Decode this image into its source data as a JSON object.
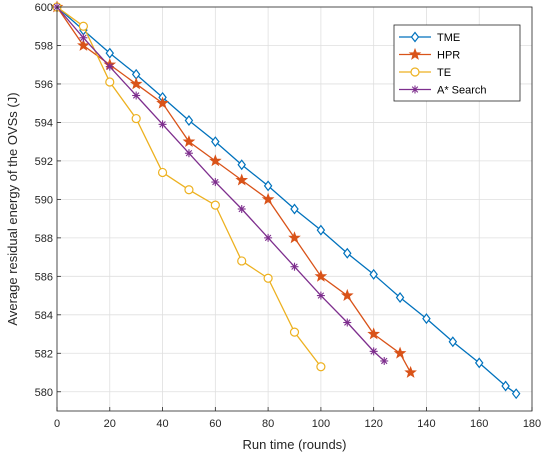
{
  "chart_data": {
    "type": "line",
    "title": "",
    "xlabel": "Run time (rounds)",
    "ylabel": "Average residual energy of the OVSs (J)",
    "xlim": [
      0,
      180
    ],
    "ylim": [
      579,
      600
    ],
    "xticks": [
      0,
      20,
      40,
      60,
      80,
      100,
      120,
      140,
      160,
      180
    ],
    "yticks": [
      580,
      582,
      584,
      586,
      588,
      590,
      592,
      594,
      596,
      598,
      600
    ],
    "grid": true,
    "legend_position": "top-right",
    "series": [
      {
        "name": "TME",
        "color": "#0072BD",
        "marker": "diamond",
        "x": [
          0,
          10,
          20,
          30,
          40,
          50,
          60,
          70,
          80,
          90,
          100,
          110,
          120,
          130,
          140,
          150,
          160,
          170,
          174
        ],
        "y": [
          600,
          598.8,
          597.6,
          596.5,
          595.3,
          594.1,
          593.0,
          591.8,
          590.7,
          589.5,
          588.4,
          587.2,
          586.1,
          584.9,
          583.8,
          582.6,
          581.5,
          580.3,
          579.9
        ]
      },
      {
        "name": "HPR",
        "color": "#D95319",
        "marker": "star",
        "x": [
          0,
          10,
          20,
          30,
          40,
          50,
          60,
          70,
          80,
          90,
          100,
          110,
          120,
          130,
          134
        ],
        "y": [
          600,
          598.0,
          597.0,
          596.0,
          595.0,
          593.0,
          592.0,
          591.0,
          590.0,
          588.0,
          586.0,
          585.0,
          583.0,
          582.0,
          581.0
        ]
      },
      {
        "name": "TE",
        "color": "#EDB120",
        "marker": "circle",
        "x": [
          0,
          10,
          20,
          30,
          40,
          50,
          60,
          70,
          80,
          90,
          100
        ],
        "y": [
          600,
          599.0,
          596.1,
          594.2,
          591.4,
          590.5,
          589.7,
          586.8,
          585.9,
          583.1,
          581.3
        ]
      },
      {
        "name": "A* Search",
        "color": "#7E2F8E",
        "marker": "asterisk",
        "x": [
          0,
          10,
          20,
          30,
          40,
          50,
          60,
          70,
          80,
          90,
          100,
          110,
          120,
          124
        ],
        "y": [
          600,
          598.4,
          596.9,
          595.4,
          593.9,
          592.4,
          590.9,
          589.5,
          588.0,
          586.5,
          585.0,
          583.6,
          582.1,
          581.6
        ]
      }
    ]
  }
}
